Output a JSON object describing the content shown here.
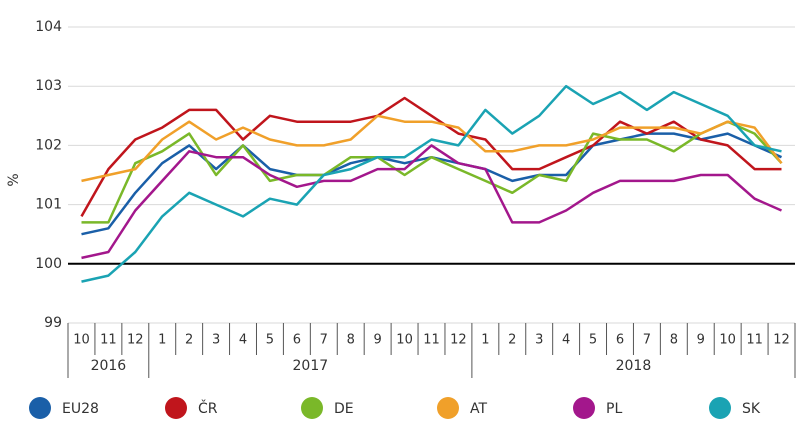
{
  "chart_data": {
    "type": "line",
    "y_label": "%",
    "categories": [
      "10",
      "11",
      "12",
      "1",
      "2",
      "3",
      "4",
      "5",
      "6",
      "7",
      "8",
      "9",
      "10",
      "11",
      "12",
      "1",
      "2",
      "3",
      "4",
      "5",
      "6",
      "7",
      "8",
      "9",
      "10",
      "11",
      "12"
    ],
    "x_groups": [
      "2016",
      "2017",
      "2018"
    ],
    "ylim": [
      99,
      104
    ],
    "yticks": [
      99,
      100,
      101,
      102,
      103,
      104
    ],
    "grid": true,
    "baseline": 100,
    "legend": "bottom",
    "series": [
      {
        "name": "EU28",
        "color": "#1a5fa8",
        "values": [
          100.5,
          100.6,
          101.2,
          101.7,
          102.0,
          101.6,
          102.0,
          101.6,
          101.5,
          101.5,
          101.7,
          101.8,
          101.7,
          101.8,
          101.7,
          101.6,
          101.4,
          101.5,
          101.5,
          102.0,
          102.1,
          102.2,
          102.2,
          102.1,
          102.2,
          102.0,
          101.8
        ]
      },
      {
        "name": "ČR",
        "color": "#c0151c",
        "values": [
          100.8,
          101.6,
          102.1,
          102.3,
          102.6,
          102.6,
          102.1,
          102.5,
          102.4,
          102.4,
          102.4,
          102.5,
          102.8,
          102.5,
          102.2,
          102.1,
          101.6,
          101.6,
          101.8,
          102.0,
          102.4,
          102.2,
          102.4,
          102.1,
          102.0,
          101.6,
          101.6
        ]
      },
      {
        "name": "DE",
        "color": "#7ab829",
        "values": [
          100.7,
          100.7,
          101.7,
          101.9,
          102.2,
          101.5,
          102.0,
          101.4,
          101.5,
          101.5,
          101.8,
          101.8,
          101.5,
          101.8,
          101.6,
          101.4,
          101.2,
          101.5,
          101.4,
          102.2,
          102.1,
          102.1,
          101.9,
          102.2,
          102.4,
          102.2,
          101.7
        ]
      },
      {
        "name": "AT",
        "color": "#f0a02a",
        "values": [
          101.4,
          101.5,
          101.6,
          102.1,
          102.4,
          102.1,
          102.3,
          102.1,
          102.0,
          102.0,
          102.1,
          102.5,
          102.4,
          102.4,
          102.3,
          101.9,
          101.9,
          102.0,
          102.0,
          102.1,
          102.3,
          102.3,
          102.3,
          102.2,
          102.4,
          102.3,
          101.7
        ]
      },
      {
        "name": "PL",
        "color": "#a3178c",
        "values": [
          100.1,
          100.2,
          100.9,
          101.4,
          101.9,
          101.8,
          101.8,
          101.5,
          101.3,
          101.4,
          101.4,
          101.6,
          101.6,
          102.0,
          101.7,
          101.6,
          100.7,
          100.7,
          100.9,
          101.2,
          101.4,
          101.4,
          101.4,
          101.5,
          101.5,
          101.1,
          100.9
        ]
      },
      {
        "name": "SK",
        "color": "#1aa3b3",
        "values": [
          99.7,
          99.8,
          100.2,
          100.8,
          101.2,
          101.0,
          100.8,
          101.1,
          101.0,
          101.5,
          101.6,
          101.8,
          101.8,
          102.1,
          102.0,
          102.6,
          102.2,
          102.5,
          103.0,
          102.7,
          102.9,
          102.6,
          102.9,
          102.7,
          102.5,
          102.0,
          101.9
        ]
      }
    ]
  }
}
